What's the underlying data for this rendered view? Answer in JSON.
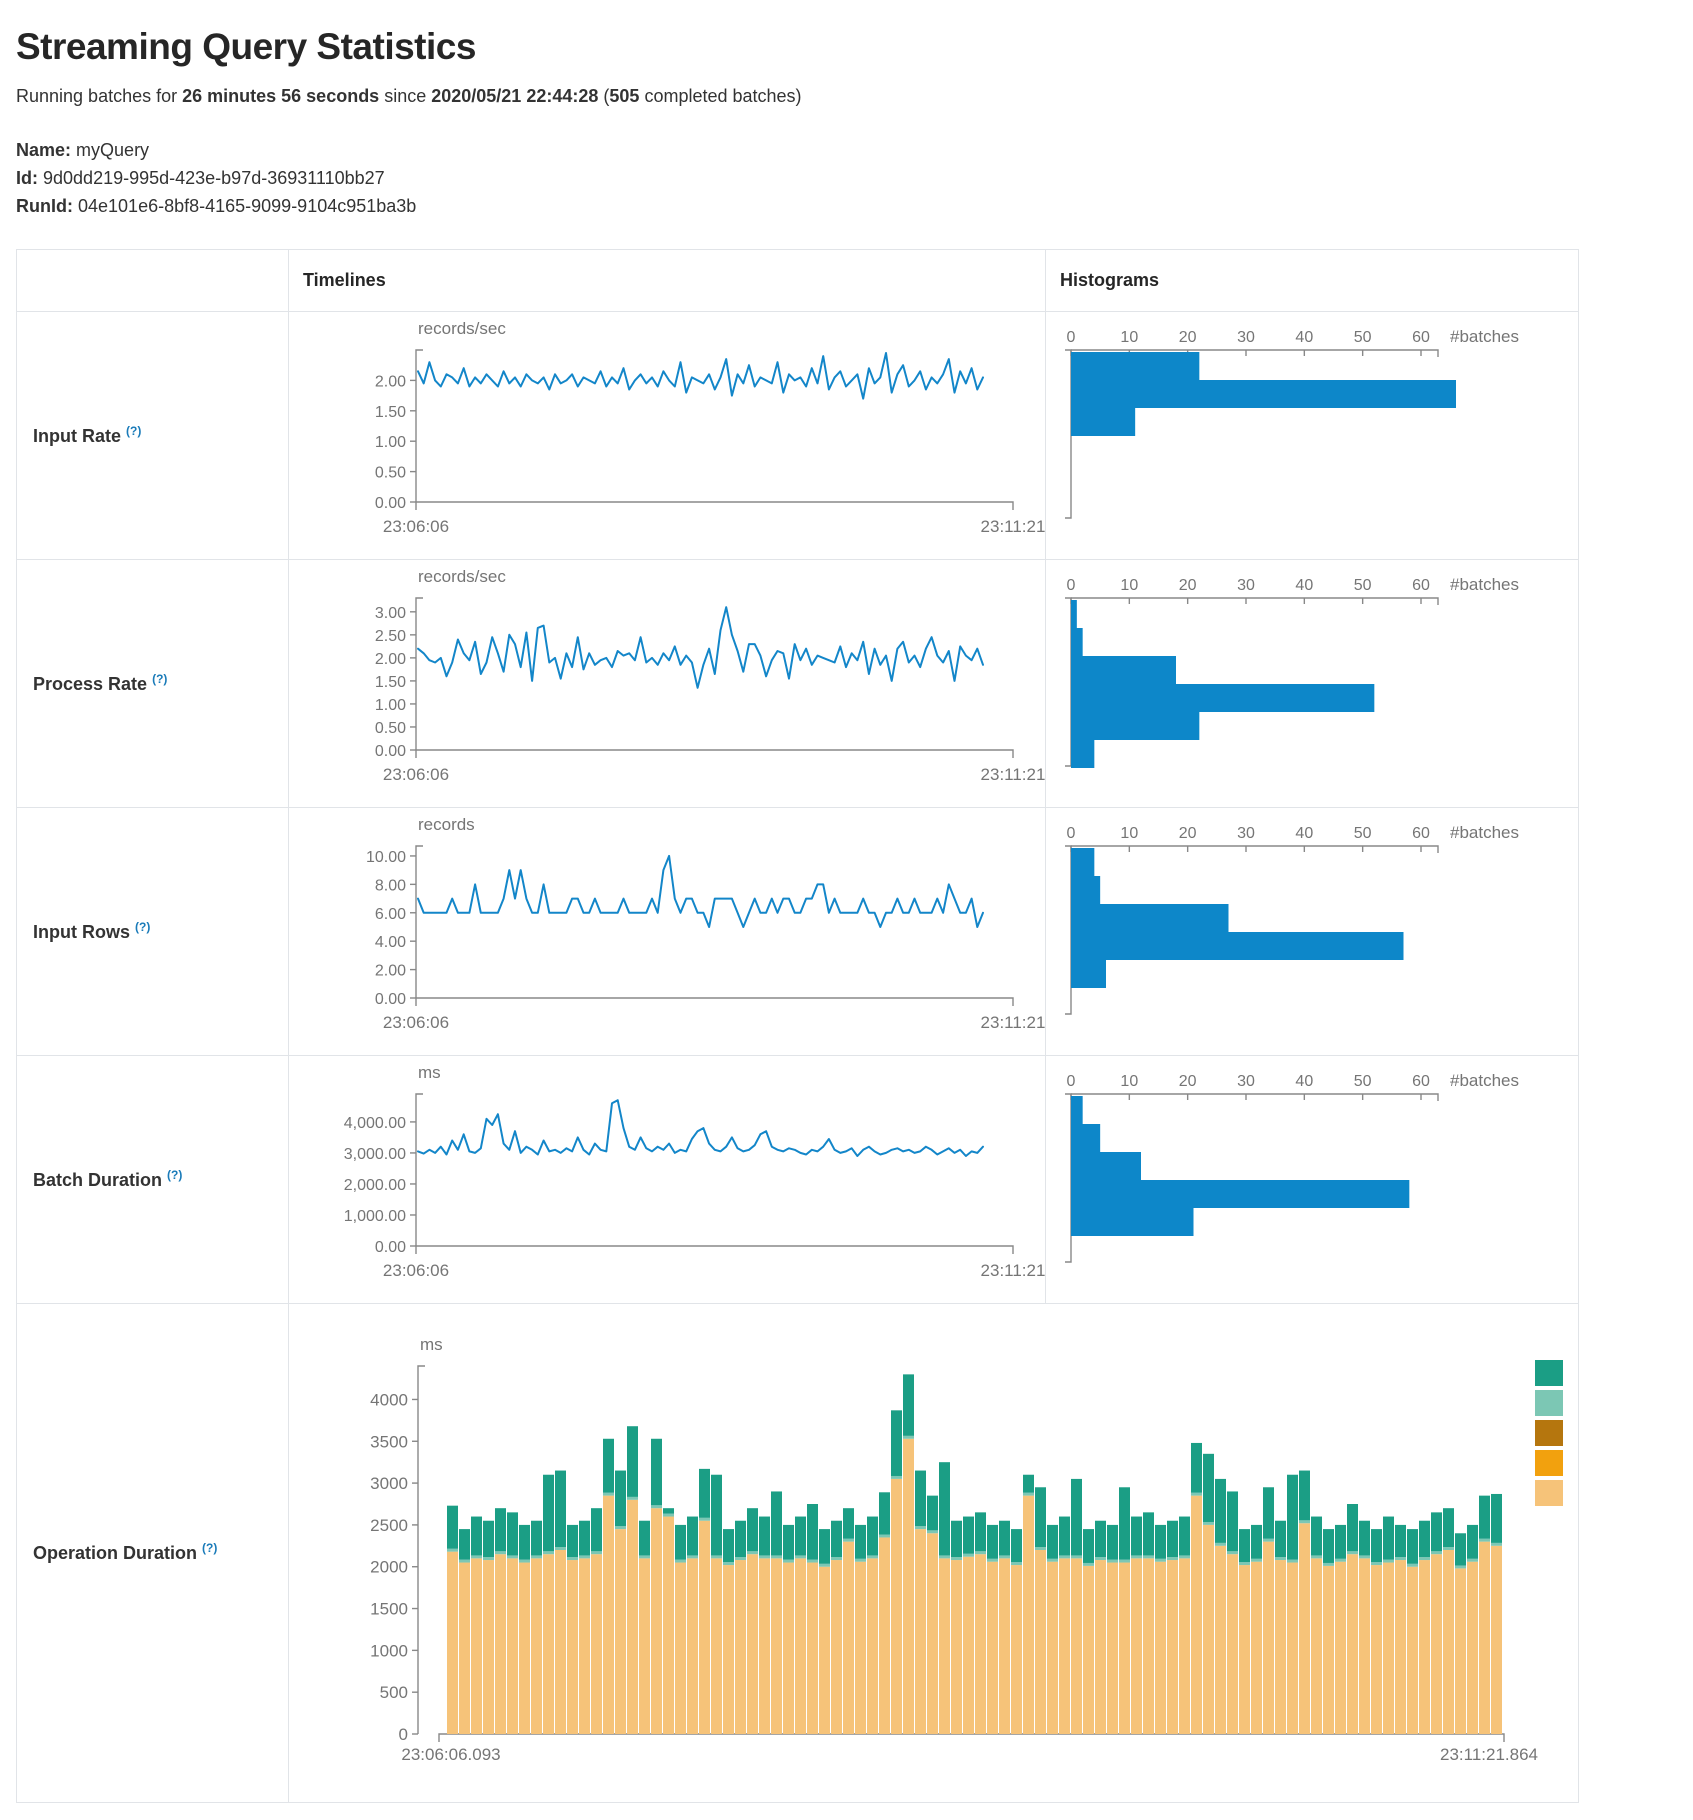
{
  "page": {
    "title": "Streaming Query Statistics",
    "subtitle": {
      "prefix": "Running batches for ",
      "duration": "26 minutes 56 seconds",
      "middle": " since ",
      "start_time": "2020/05/21 22:44:28",
      "paren": " (",
      "batch_count": "505",
      "suffix": " completed batches)"
    },
    "name_label": "Name:",
    "name_value": "myQuery",
    "id_label": "Id:",
    "id_value": "9d0dd219-995d-423e-b97d-36931110bb27",
    "runid_label": "RunId:",
    "runid_value": "04e101e6-8bf8-4165-9099-9104c951ba3b"
  },
  "table": {
    "col_timelines": "Timelines",
    "col_histograms": "Histograms",
    "help_symbol": "(?)"
  },
  "colors": {
    "line": "#1386c9",
    "bar": "#0d87c9",
    "axis": "#888888",
    "tick_text": "#757575",
    "legend": [
      "#1b9e85",
      "#7cc7b4",
      "#b5760e",
      "#f2a10e",
      "#f6c379"
    ]
  },
  "histogram_axis": {
    "tick_labels": [
      "0",
      "10",
      "20",
      "30",
      "40",
      "50",
      "60"
    ],
    "tick_values": [
      0,
      10,
      20,
      30,
      40,
      50,
      60
    ],
    "unit": "#batches"
  },
  "chart_data": {
    "rows": [
      {
        "label": "Input Rate",
        "type": "line",
        "unit": "records/sec",
        "x_start": "23:06:06",
        "x_end": "23:11:21",
        "y_ticks": {
          "labels": [
            "2.00",
            "1.50",
            "1.00",
            "0.50",
            "0.00"
          ],
          "values": [
            2,
            1.5,
            1,
            0.5,
            0
          ],
          "domain": 2.5
        },
        "values": [
          2.15,
          1.95,
          2.3,
          2.0,
          1.9,
          2.1,
          2.05,
          1.95,
          2.2,
          1.9,
          2.05,
          1.95,
          2.1,
          2.0,
          1.9,
          2.15,
          1.95,
          2.05,
          1.9,
          2.1,
          2.0,
          1.95,
          2.05,
          1.85,
          2.1,
          1.95,
          2.0,
          2.1,
          1.9,
          2.05,
          2.0,
          1.95,
          2.15,
          1.9,
          2.05,
          1.95,
          2.2,
          1.85,
          2.0,
          2.1,
          1.95,
          2.05,
          1.9,
          2.15,
          2.0,
          1.9,
          2.3,
          1.8,
          2.05,
          2.0,
          1.95,
          2.1,
          1.85,
          2.05,
          2.35,
          1.75,
          2.1,
          1.95,
          2.25,
          1.9,
          2.05,
          2.0,
          1.95,
          2.3,
          1.8,
          2.1,
          2.0,
          2.05,
          1.9,
          2.2,
          1.95,
          2.4,
          1.85,
          2.05,
          2.15,
          1.9,
          2.0,
          2.1,
          1.7,
          2.2,
          1.95,
          2.05,
          2.45,
          1.8,
          2.1,
          2.25,
          1.9,
          2.0,
          2.15,
          1.85,
          2.05,
          1.95,
          2.1,
          2.35,
          1.8,
          2.15,
          1.95,
          2.2,
          1.85,
          2.05
        ],
        "histogram_bars": [
          22,
          66,
          11
        ]
      },
      {
        "label": "Process Rate",
        "type": "line",
        "unit": "records/sec",
        "x_start": "23:06:06",
        "x_end": "23:11:21",
        "y_ticks": {
          "labels": [
            "3.00",
            "2.50",
            "2.00",
            "1.50",
            "1.00",
            "0.50",
            "0.00"
          ],
          "values": [
            3,
            2.5,
            2,
            1.5,
            1,
            0.5,
            0
          ],
          "domain": 3.3
        },
        "values": [
          2.2,
          2.1,
          1.95,
          1.9,
          2.0,
          1.6,
          1.9,
          2.4,
          2.1,
          1.95,
          2.35,
          1.65,
          1.9,
          2.45,
          2.1,
          1.7,
          2.5,
          2.3,
          1.8,
          2.55,
          1.5,
          2.65,
          2.7,
          1.9,
          2.0,
          1.55,
          2.1,
          1.8,
          2.45,
          1.75,
          2.1,
          1.85,
          1.95,
          2.0,
          1.8,
          2.15,
          2.05,
          2.1,
          1.95,
          2.45,
          1.9,
          2.0,
          1.85,
          2.1,
          1.95,
          2.25,
          1.85,
          2.05,
          1.9,
          1.35,
          1.85,
          2.2,
          1.65,
          2.6,
          3.1,
          2.5,
          2.15,
          1.7,
          2.3,
          2.3,
          2.05,
          1.6,
          1.95,
          2.15,
          2.1,
          1.55,
          2.3,
          1.95,
          2.2,
          1.85,
          2.05,
          2.0,
          1.95,
          1.9,
          2.25,
          1.8,
          2.1,
          1.95,
          2.35,
          1.65,
          2.2,
          1.85,
          2.05,
          1.5,
          2.2,
          2.35,
          1.9,
          2.05,
          1.8,
          2.2,
          2.45,
          2.05,
          1.9,
          2.15,
          1.5,
          2.25,
          2.05,
          1.95,
          2.2,
          1.85
        ],
        "histogram_bars": [
          1,
          2,
          18,
          52,
          22,
          4
        ]
      },
      {
        "label": "Input Rows",
        "type": "line",
        "unit": "records",
        "x_start": "23:06:06",
        "x_end": "23:11:21",
        "y_ticks": {
          "labels": [
            "10.00",
            "8.00",
            "6.00",
            "4.00",
            "2.00",
            "0.00"
          ],
          "values": [
            10,
            8,
            6,
            4,
            2,
            0
          ],
          "domain": 10.7
        },
        "values": [
          7,
          6,
          6,
          6,
          6,
          6,
          7,
          6,
          6,
          6,
          8,
          6,
          6,
          6,
          6,
          7,
          9,
          7,
          9,
          7,
          6,
          6,
          8,
          6,
          6,
          6,
          6,
          7,
          7,
          6,
          6,
          7,
          6,
          6,
          6,
          6,
          7,
          6,
          6,
          6,
          6,
          7,
          6,
          9,
          10,
          7,
          6,
          7,
          7,
          6,
          6,
          5,
          7,
          7,
          7,
          7,
          6,
          5,
          6,
          7,
          6,
          6,
          7,
          6,
          7,
          7,
          6,
          6,
          7,
          7,
          8,
          8,
          6,
          7,
          6,
          6,
          6,
          6,
          7,
          6,
          6,
          5,
          6,
          6,
          7,
          6,
          6,
          7,
          6,
          6,
          6,
          7,
          6,
          8,
          7,
          6,
          6,
          7,
          5,
          6
        ],
        "histogram_bars": [
          4,
          5,
          27,
          57,
          6
        ]
      },
      {
        "label": "Batch Duration",
        "type": "line",
        "unit": "ms",
        "x_start": "23:06:06",
        "x_end": "23:11:21",
        "y_ticks": {
          "labels": [
            "4,000.00",
            "3,000.00",
            "2,000.00",
            "1,000.00",
            "0.00"
          ],
          "values": [
            4000,
            3000,
            2000,
            1000,
            0
          ],
          "domain": 4900
        },
        "values": [
          3050,
          2980,
          3100,
          3000,
          3200,
          2950,
          3400,
          3100,
          3600,
          3050,
          3000,
          3150,
          4100,
          3900,
          4250,
          3300,
          3100,
          3700,
          3000,
          3200,
          3100,
          2950,
          3400,
          3050,
          3100,
          3000,
          3150,
          3050,
          3500,
          3100,
          2950,
          3300,
          3100,
          3050,
          4600,
          4700,
          3800,
          3200,
          3100,
          3500,
          3150,
          3050,
          3200,
          3100,
          3300,
          3000,
          3100,
          3050,
          3450,
          3700,
          3800,
          3300,
          3100,
          3050,
          3200,
          3500,
          3150,
          3050,
          3100,
          3250,
          3600,
          3700,
          3200,
          3100,
          3050,
          3150,
          3100,
          3000,
          2950,
          3100,
          3050,
          3200,
          3450,
          3100,
          3000,
          3050,
          3150,
          2900,
          3100,
          3200,
          3050,
          2950,
          3000,
          3100,
          3150,
          3050,
          3100,
          3000,
          3050,
          3200,
          3100,
          2950,
          3050,
          3150,
          3000,
          3100,
          2900,
          3050,
          3000,
          3200
        ],
        "histogram_bars": [
          2,
          5,
          12,
          58,
          21
        ]
      }
    ],
    "operation": {
      "label": "Operation Duration",
      "type": "stacked-bar",
      "unit": "ms",
      "x_start": "23:06:06.093",
      "x_end": "23:11:21.864",
      "y_ticks": {
        "labels": [
          "4000",
          "3500",
          "3000",
          "2500",
          "2000",
          "1500",
          "1000",
          "500",
          "0"
        ],
        "values": [
          4000,
          3500,
          3000,
          2500,
          2000,
          1500,
          1000,
          500,
          0
        ],
        "domain": 4400
      },
      "separator": 35,
      "totals": [
        2730,
        2450,
        2600,
        2550,
        2700,
        2650,
        2500,
        2550,
        3100,
        3150,
        2500,
        2550,
        2700,
        3530,
        3150,
        3680,
        2550,
        3530,
        2700,
        2500,
        2600,
        3170,
        3100,
        2450,
        2550,
        2700,
        2600,
        2900,
        2500,
        2600,
        2750,
        2450,
        2550,
        2700,
        2500,
        2600,
        2890,
        3870,
        4300,
        3150,
        2850,
        3250,
        2550,
        2600,
        2650,
        2500,
        2550,
        2450,
        3100,
        2950,
        2500,
        2600,
        3050,
        2450,
        2550,
        2500,
        2950,
        2600,
        2650,
        2500,
        2550,
        2600,
        3480,
        3350,
        3050,
        2900,
        2450,
        2500,
        2950,
        2550,
        3100,
        3150,
        2600,
        2450,
        2500,
        2750,
        2550,
        2450,
        2600,
        2500,
        2450,
        2550,
        2650,
        2700,
        2400,
        2500,
        2850,
        2870
      ],
      "base": [
        2180,
        2050,
        2100,
        2080,
        2150,
        2100,
        2050,
        2100,
        2150,
        2200,
        2080,
        2100,
        2150,
        2850,
        2450,
        2800,
        2100,
        2700,
        2600,
        2050,
        2100,
        2550,
        2100,
        2020,
        2080,
        2150,
        2100,
        2100,
        2050,
        2100,
        2050,
        2000,
        2080,
        2300,
        2060,
        2100,
        2350,
        3050,
        3530,
        2450,
        2400,
        2100,
        2080,
        2120,
        2150,
        2060,
        2100,
        2020,
        2850,
        2200,
        2060,
        2100,
        2100,
        2010,
        2080,
        2050,
        2050,
        2100,
        2100,
        2060,
        2080,
        2100,
        2850,
        2500,
        2250,
        2150,
        2020,
        2060,
        2300,
        2080,
        2050,
        2520,
        2100,
        2010,
        2060,
        2150,
        2100,
        2020,
        2050,
        2080,
        2000,
        2080,
        2150,
        2200,
        1980,
        2060,
        2300,
        2250
      ]
    }
  }
}
